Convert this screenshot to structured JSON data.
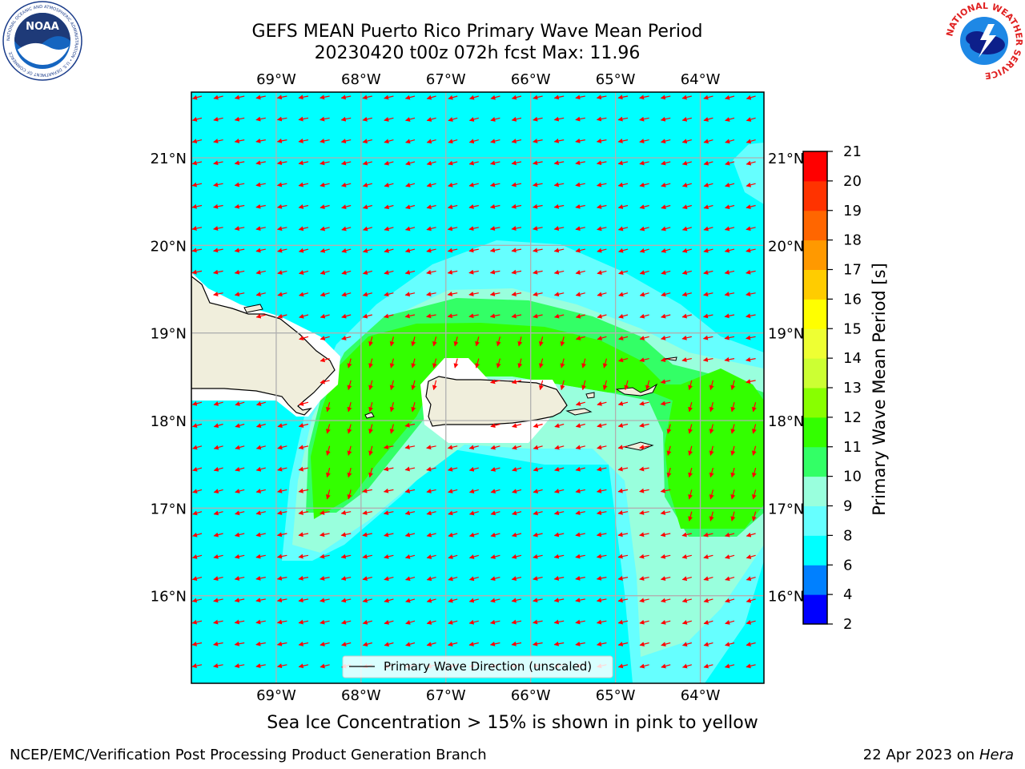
{
  "header": {
    "title_line1": "GEFS MEAN Puerto Rico Primary Wave Mean Period",
    "title_line2": "20230420 t00z 072h fcst   Max: 11.96"
  },
  "logos": {
    "left": "NOAA",
    "left_ring": "NATIONAL OCEANIC AND ATMOSPHERIC ADMINISTRATION • U.S. DEPARTMENT OF COMMERCE",
    "right_ring": "NATIONAL WEATHER SERVICE"
  },
  "map": {
    "lon_labels": [
      "69°W",
      "68°W",
      "67°W",
      "66°W",
      "65°W",
      "64°W"
    ],
    "lat_labels": [
      "21°N",
      "20°N",
      "19°N",
      "18°N",
      "17°N",
      "16°N"
    ],
    "lon_values": [
      -69,
      -68,
      -67,
      -66,
      -65,
      -64
    ],
    "lat_values": [
      21,
      20,
      19,
      18,
      17,
      16
    ],
    "extent": {
      "lon_min": -70,
      "lon_max": -63.25,
      "lat_min": 15.0,
      "lat_max": 21.75
    },
    "legend_text": "Primary Wave Direction (unscaled)",
    "colors": {
      "ocean_base": "#00ffff",
      "period_8_9": "#66ffff",
      "period_9_10": "#99ffdd",
      "period_10_11": "#33ff66",
      "period_11_12": "#33ff00",
      "land": "#f0eedc",
      "arrow": "#ff0000"
    }
  },
  "colorbar": {
    "label": "Primary Wave Mean Period [s]",
    "ticks": [
      "21",
      "20",
      "19",
      "18",
      "17",
      "16",
      "15",
      "14",
      "13",
      "12",
      "11",
      "10",
      "9",
      "8",
      "6",
      "4",
      "2"
    ],
    "colors_bottom_to_top": [
      "#0000ff",
      "#0080ff",
      "#00ffff",
      "#66ffff",
      "#99ffdd",
      "#33ff66",
      "#33ff00",
      "#88ff00",
      "#ccff33",
      "#eeff33",
      "#ffff00",
      "#ffcc00",
      "#ff9900",
      "#ff6600",
      "#ff3300",
      "#ff0000"
    ]
  },
  "subtitle": "Sea Ice Concentration > 15% is shown in pink to yellow",
  "footer": {
    "left": "NCEP/EMC/Verification Post Processing Product Generation Branch",
    "right_date": "22 Apr 2023 on",
    "right_host": "Hera"
  }
}
